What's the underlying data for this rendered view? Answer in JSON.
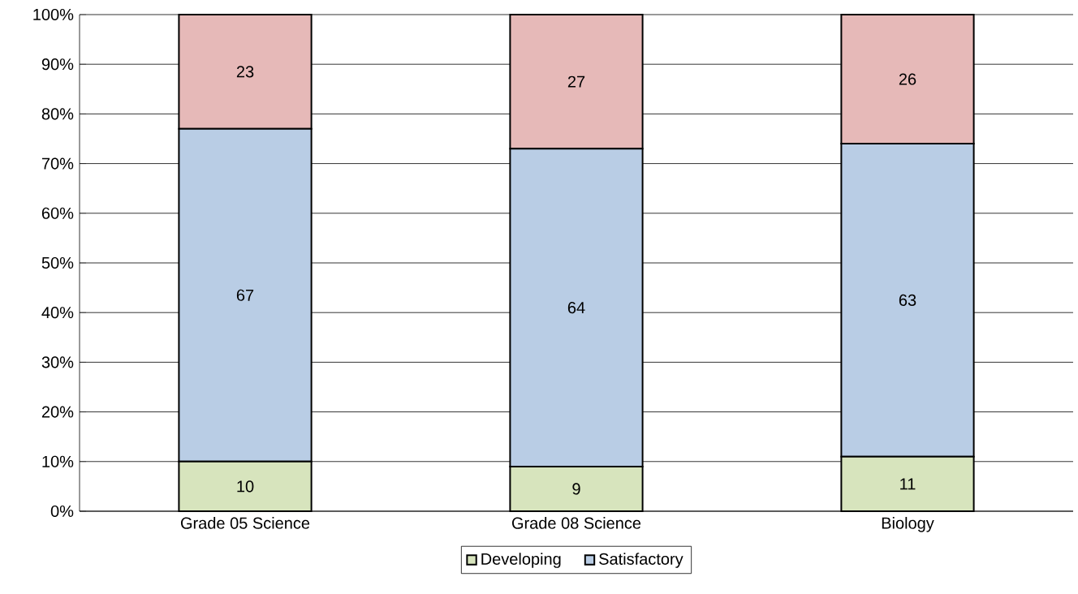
{
  "chart_data": {
    "type": "bar",
    "stacked": true,
    "categories": [
      "Grade 05 Science",
      "Grade 08 Science",
      "Biology"
    ],
    "series": [
      {
        "name": "Developing",
        "color": "#d7e4bd",
        "values": [
          10,
          9,
          11
        ]
      },
      {
        "name": "Satisfactory",
        "color": "#b9cde5",
        "values": [
          67,
          64,
          63
        ]
      },
      {
        "color": "#e6b9b8",
        "values": [
          23,
          27,
          26
        ]
      }
    ],
    "ylim": [
      0,
      100
    ],
    "yticks": [
      {
        "value": 0,
        "label": "0%"
      },
      {
        "value": 10,
        "label": "10%"
      },
      {
        "value": 20,
        "label": "20%"
      },
      {
        "value": 30,
        "label": "30%"
      },
      {
        "value": 40,
        "label": "40%"
      },
      {
        "value": 50,
        "label": "50%"
      },
      {
        "value": 60,
        "label": "60%"
      },
      {
        "value": 70,
        "label": "70%"
      },
      {
        "value": 80,
        "label": "80%"
      },
      {
        "value": 90,
        "label": "90%"
      },
      {
        "value": 100,
        "label": "100%"
      }
    ],
    "grid": "y",
    "legend": "bottom",
    "data_labels": true
  }
}
